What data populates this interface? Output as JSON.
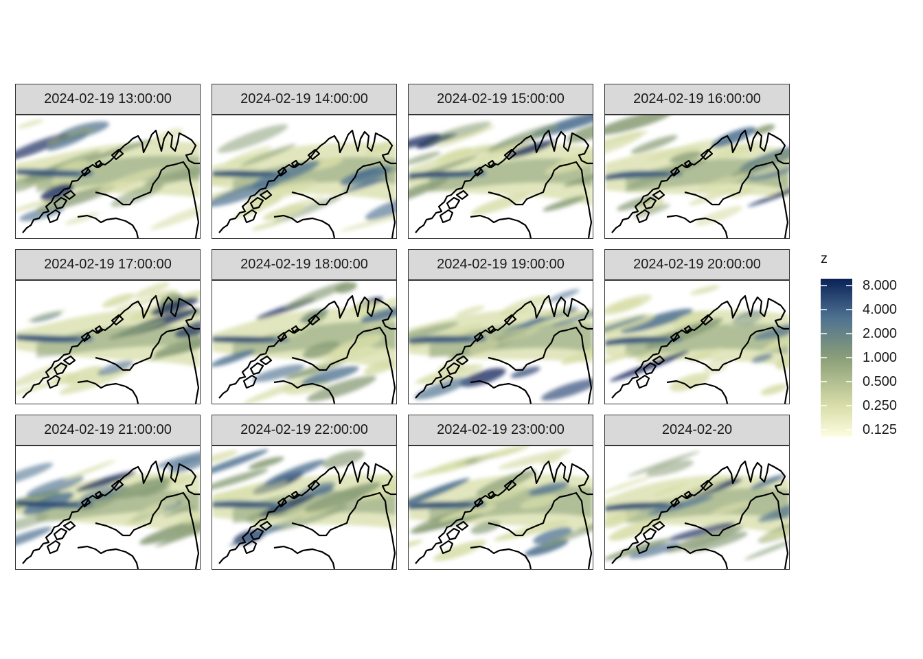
{
  "chart_data": {
    "type": "heatmap",
    "panels": [
      {
        "label": "2024-02-19 13:00:00"
      },
      {
        "label": "2024-02-19 14:00:00"
      },
      {
        "label": "2024-02-19 15:00:00"
      },
      {
        "label": "2024-02-19 16:00:00"
      },
      {
        "label": "2024-02-19 17:00:00"
      },
      {
        "label": "2024-02-19 18:00:00"
      },
      {
        "label": "2024-02-19 19:00:00"
      },
      {
        "label": "2024-02-19 20:00:00"
      },
      {
        "label": "2024-02-19 21:00:00"
      },
      {
        "label": "2024-02-19 22:00:00"
      },
      {
        "label": "2024-02-19 23:00:00"
      },
      {
        "label": "2024-02-20"
      }
    ],
    "legend": {
      "title": "z",
      "scale": "log2",
      "breaks": [
        "8.000",
        "4.000",
        "2.000",
        "1.000",
        "0.500",
        "0.250",
        "0.125"
      ],
      "range": [
        0.125,
        8
      ]
    },
    "colors": {
      "low": "#fcfde0",
      "mid_low": "#d7dda8",
      "mid": "#8a9e78",
      "mid_high": "#4f7291",
      "high": "#0a2158",
      "coastline": "#000000",
      "strip_fill": "#d9d9d9",
      "panel_border": "#333333"
    },
    "grid": false,
    "legend_position": "right"
  }
}
